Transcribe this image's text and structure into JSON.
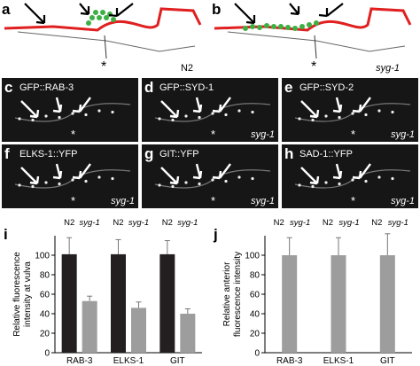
{
  "diagrams": [
    {
      "label": "a",
      "strain": "N2"
    },
    {
      "label": "b",
      "strain": "syg-1"
    }
  ],
  "asterisk": "*",
  "images": [
    {
      "label": "c",
      "marker": "GFP::RAB-3"
    },
    {
      "label": "d",
      "marker": "GFP::SYD-1",
      "strain": "syg-1"
    },
    {
      "label": "e",
      "marker": "GFP::SYD-2",
      "strain": "syg-1"
    },
    {
      "label": "f",
      "marker": "ELKS-1::YFP",
      "strain": "syg-1"
    },
    {
      "label": "g",
      "marker": "GIT::YFP",
      "strain": "syg-1"
    },
    {
      "label": "h",
      "marker": "SAD-1::YFP",
      "strain": "syg-1"
    }
  ],
  "chart_data": [
    {
      "type": "bar",
      "label": "i",
      "ylabel": [
        "Relative fluorescence",
        "intensity at vulva"
      ],
      "categories": [
        "RAB-3",
        "ELKS-1",
        "GIT"
      ],
      "series": [
        {
          "name": "N2",
          "color": "#231f20",
          "values": [
            101,
            101,
            101
          ],
          "errors": [
            17,
            15,
            14
          ]
        },
        {
          "name": "syg-1",
          "color": "#9d9d9d",
          "values": [
            53,
            46,
            40
          ],
          "errors": [
            5,
            6,
            5
          ]
        }
      ],
      "ylim": [
        0,
        120
      ],
      "yticks": [
        0,
        20,
        40,
        60,
        80,
        100
      ]
    },
    {
      "type": "bar",
      "label": "j",
      "ylabel": [
        "Relative anterior",
        "fluorescence intensity"
      ],
      "reference": "N2",
      "categories": [
        "RAB-3",
        "ELKS-1",
        "GIT"
      ],
      "series": [
        {
          "name": "syg-1",
          "color": "#9d9d9d",
          "values": [
            100,
            100,
            100
          ],
          "errors": [
            18,
            18,
            22
          ]
        }
      ],
      "ylim": [
        0,
        120
      ],
      "yticks": [
        0,
        20,
        40,
        60,
        80,
        100
      ]
    }
  ]
}
